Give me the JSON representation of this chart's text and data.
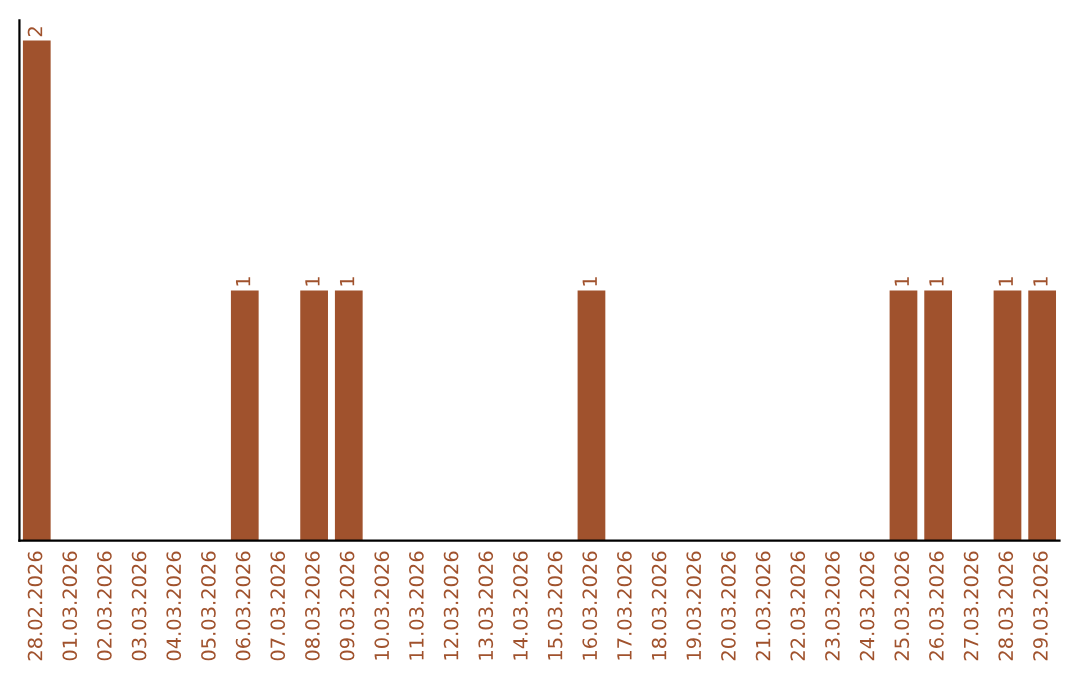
{
  "chart_data": {
    "type": "bar",
    "categories": [
      "28.02.2026",
      "01.03.2026",
      "02.03.2026",
      "03.03.2026",
      "04.03.2026",
      "05.03.2026",
      "06.03.2026",
      "07.03.2026",
      "08.03.2026",
      "09.03.2026",
      "10.03.2026",
      "11.03.2026",
      "12.03.2026",
      "13.03.2026",
      "14.03.2026",
      "15.03.2026",
      "16.03.2026",
      "17.03.2026",
      "18.03.2026",
      "19.03.2026",
      "20.03.2026",
      "21.03.2026",
      "22.03.2026",
      "23.03.2026",
      "24.03.2026",
      "25.03.2026",
      "26.03.2026",
      "27.03.2026",
      "28.03.2026",
      "29.03.2026"
    ],
    "values": [
      2,
      0,
      0,
      0,
      0,
      0,
      1,
      0,
      1,
      1,
      0,
      0,
      0,
      0,
      0,
      0,
      1,
      0,
      0,
      0,
      0,
      0,
      0,
      0,
      0,
      1,
      1,
      0,
      1,
      1
    ],
    "value_labels": [
      "2",
      null,
      null,
      null,
      null,
      null,
      "1",
      null,
      "1",
      "1",
      null,
      null,
      null,
      null,
      null,
      null,
      "1",
      null,
      null,
      null,
      null,
      null,
      null,
      null,
      null,
      "1",
      "1",
      null,
      "1",
      "1"
    ],
    "color": "#a0522d",
    "tick_labels": "x",
    "grid": false,
    "legend": false
  }
}
